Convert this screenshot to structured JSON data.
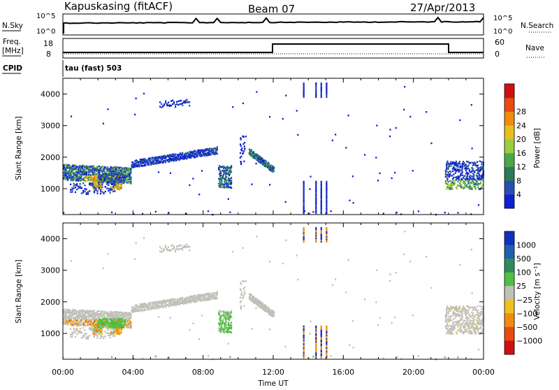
{
  "header": {
    "station": "Kapuskasing (fitACF)",
    "beam": "Beam 07",
    "date": "27/Apr/2013"
  },
  "strip_labels": {
    "nsky": "N.Sky",
    "nsky_ticks": [
      "10^5",
      "10^0"
    ],
    "nsearch": "N.Search",
    "nsearch_ticks": [
      "10^5",
      "10^0"
    ],
    "freq": "Freq.",
    "freq_unit": "[MHz]",
    "freq_ticks": [
      "18",
      "8"
    ],
    "nave": "Nave",
    "nave_ticks": [
      "60",
      "0"
    ],
    "cpid": "CPID",
    "cpid_value": "tau (fast) 503"
  },
  "chart_data": [
    {
      "type": "heatmap",
      "name": "power",
      "xlabel": "Time UT",
      "ylabel": "Slant Range [km]",
      "x_ticks": [
        "00:00",
        "04:00",
        "08:00",
        "12:00",
        "16:00",
        "20:00",
        "00:00"
      ],
      "y_ticks": [
        "1000",
        "2000",
        "3000",
        "4000"
      ],
      "xlim_hours": [
        0,
        24
      ],
      "ylim_km": [
        180,
        4500
      ],
      "colorbar": {
        "label": "Power [dB]",
        "ticks": [
          "4",
          "8",
          "12",
          "16",
          "20",
          "24",
          "28"
        ],
        "colors": [
          "#1020d0",
          "#2850b0",
          "#2a7a5a",
          "#4aa84a",
          "#9acc40",
          "#e6c020",
          "#f08a10",
          "#e84a10",
          "#d01010"
        ]
      },
      "scatter_regions": [
        {
          "t": [
            0.0,
            3.9
          ],
          "r": [
            1300,
            1800
          ],
          "level": "mixed-strong"
        },
        {
          "t": [
            3.9,
            8.8
          ],
          "r": [
            1700,
            2300
          ],
          "level": "weak"
        },
        {
          "t": [
            5.5,
            7.2
          ],
          "r": [
            3550,
            3800
          ],
          "level": "weak"
        },
        {
          "t": [
            8.8,
            9.6
          ],
          "r": [
            1050,
            1800
          ],
          "level": "mixed"
        },
        {
          "t": [
            10.7,
            12.0
          ],
          "r": [
            1500,
            2300
          ],
          "level": "mixed"
        },
        {
          "t": [
            21.8,
            24.0
          ],
          "r": [
            1000,
            2000
          ],
          "level": "mixed"
        }
      ]
    },
    {
      "type": "heatmap",
      "name": "velocity",
      "xlabel": "Time UT",
      "ylabel": "Slant Range [km]",
      "x_ticks": [
        "00:00",
        "04:00",
        "08:00",
        "12:00",
        "16:00",
        "20:00",
        "00:00"
      ],
      "y_ticks": [
        "1000",
        "2000",
        "3000",
        "4000"
      ],
      "xlim_hours": [
        0,
        24
      ],
      "ylim_km": [
        180,
        4500
      ],
      "colorbar": {
        "label": "Velocity [m s⁻¹]",
        "ticks": [
          "1000",
          "500",
          "100",
          "25",
          "−25",
          "−100",
          "−500",
          "−1000"
        ],
        "colors": [
          "#1030c0",
          "#2060b0",
          "#308a60",
          "#50c040",
          "#c0c0b8",
          "#f0c020",
          "#f08a10",
          "#e84a10",
          "#d01010"
        ]
      }
    }
  ]
}
